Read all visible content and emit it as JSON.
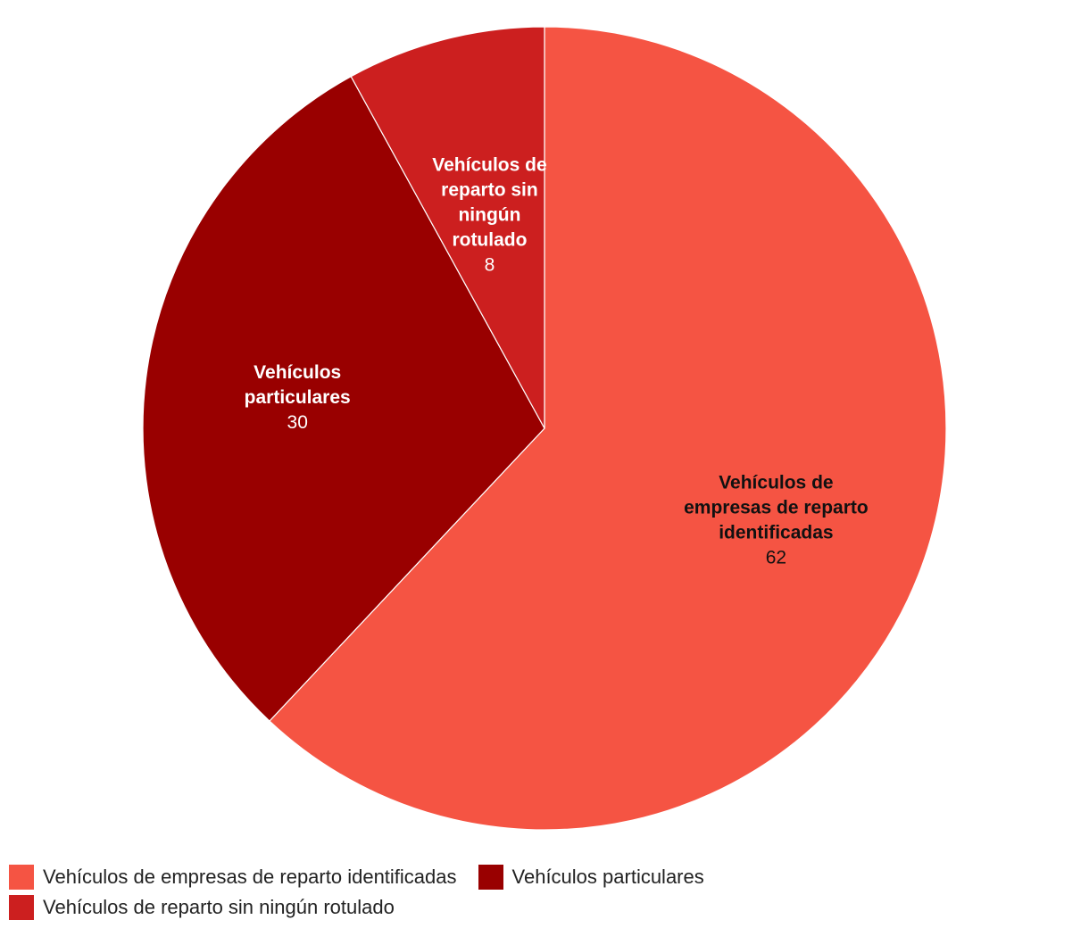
{
  "chart_data": {
    "type": "pie",
    "title": "",
    "series": [
      {
        "name": "Vehículos de empresas de reparto identificadas",
        "label_lines": [
          "Vehículos de",
          "empresas de reparto",
          "identificadas"
        ],
        "value": 62,
        "color": "#f55443",
        "label_color": "#111111"
      },
      {
        "name": "Vehículos particulares",
        "label_lines": [
          "Vehículos",
          "particulares"
        ],
        "value": 30,
        "color": "#990000",
        "label_color": "#ffffff"
      },
      {
        "name": "Vehículos de reparto sin ningún rotulado",
        "label_lines": [
          "Vehículos de",
          "reparto sin",
          "ningún",
          "rotulado"
        ],
        "value": 8,
        "color": "#cc1f1f",
        "label_color": "#ffffff"
      }
    ],
    "start_angle": "top",
    "direction": "clockwise",
    "legend_placement": "bottom-left"
  }
}
